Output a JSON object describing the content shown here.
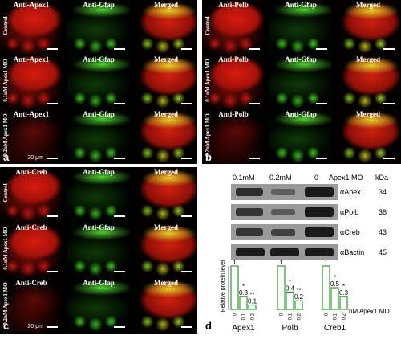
{
  "panels": {
    "a": {
      "label": "a",
      "channels": [
        "Anti-Apex1",
        "Anti-Gfap",
        "Merged"
      ],
      "rows": [
        "Control",
        "0.1nM Apex1 MO",
        "0.2nM Apex1 MO"
      ],
      "scale": "20 μm"
    },
    "b": {
      "label": "b",
      "channels": [
        "Anti-Polb",
        "Anti-Gfap",
        "Merged"
      ],
      "rows": [
        "Control",
        "0.1nM Apex1 MO",
        "0.2nM Apex1 MO"
      ]
    },
    "c": {
      "label": "c",
      "channels": [
        "Anti-Creb",
        "Anti-Gfap",
        "Merged"
      ],
      "rows": [
        "Control",
        "0.1nM Apex1 MO",
        "0.2nM Apex1 MO"
      ],
      "scale": "20 μm"
    },
    "d": {
      "label": "d"
    }
  },
  "western": {
    "lanes": [
      "0.1mM",
      "0.2mM",
      "0",
      "Apex1 MO"
    ],
    "kda_header": "kDa",
    "bands": [
      {
        "name": "αApex1",
        "kda": "34"
      },
      {
        "name": "αPolb",
        "kda": "38"
      },
      {
        "name": "αCreb",
        "kda": "43"
      },
      {
        "name": "αBactin",
        "kda": "45"
      }
    ]
  },
  "chart_data": {
    "type": "bar",
    "ylabel": "Relative protein level",
    "xlabel": "nM Apex1 MO",
    "ylim": [
      0,
      1
    ],
    "categories": [
      "0",
      "0.1",
      "0.2"
    ],
    "series": [
      {
        "name": "Apex1",
        "values": [
          1,
          0.3,
          0.1
        ],
        "labels": [
          "1",
          "0.3",
          "0.1"
        ],
        "sig": [
          "",
          "*",
          "**"
        ]
      },
      {
        "name": "Polb",
        "values": [
          1,
          0.4,
          0.2
        ],
        "labels": [
          "1",
          "0.4",
          "0.2"
        ],
        "sig": [
          "",
          "*",
          "**"
        ]
      },
      {
        "name": "Creb1",
        "values": [
          1,
          0.5,
          0.3
        ],
        "labels": [
          "1",
          "0.5",
          "0.3"
        ],
        "sig": [
          "",
          "*",
          "*"
        ]
      }
    ],
    "bar_color": "#2e9a2e"
  }
}
